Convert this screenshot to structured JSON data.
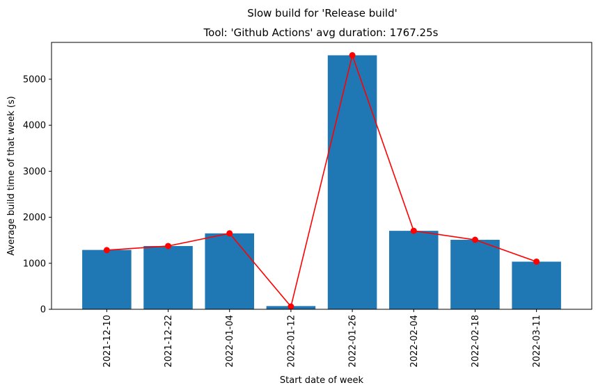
{
  "chart_data": {
    "type": "bar",
    "suptitle": "Slow build for 'Release build'",
    "title": "Tool: 'Github Actions' avg duration: 1767.25s",
    "xlabel": "Start date of week",
    "ylabel": "Average build time of that week (s)",
    "categories": [
      "2021-12-10",
      "2021-12-22",
      "2022-01-04",
      "2022-01-12",
      "2022-01-26",
      "2022-02-04",
      "2022-02-18",
      "2022-03-11"
    ],
    "series": [
      {
        "name": "bars",
        "kind": "bar",
        "color": "#1f77b4",
        "values": [
          1290,
          1375,
          1650,
          70,
          5520,
          1705,
          1510,
          1035
        ]
      },
      {
        "name": "line",
        "kind": "line-marker",
        "color": "#ff0000",
        "values": [
          1285,
          1375,
          1650,
          60,
          5520,
          1705,
          1510,
          1035
        ]
      }
    ],
    "yticks": [
      0,
      1000,
      2000,
      3000,
      4000,
      5000
    ],
    "ylim": [
      0,
      5800
    ],
    "grid": false
  }
}
